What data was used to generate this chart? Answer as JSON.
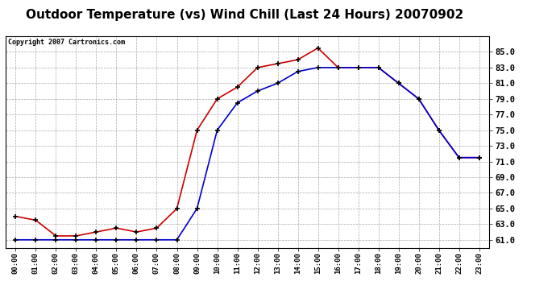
{
  "title": "Outdoor Temperature (vs) Wind Chill (Last 24 Hours) 20070902",
  "copyright_text": "Copyright 2007 Cartronics.com",
  "hours": [
    "00:00",
    "01:00",
    "02:00",
    "03:00",
    "04:00",
    "05:00",
    "06:00",
    "07:00",
    "08:00",
    "09:00",
    "10:00",
    "11:00",
    "12:00",
    "13:00",
    "14:00",
    "15:00",
    "16:00",
    "17:00",
    "18:00",
    "19:00",
    "20:00",
    "21:00",
    "22:00",
    "23:00"
  ],
  "temp": [
    64.0,
    63.5,
    61.5,
    61.5,
    62.0,
    62.5,
    62.0,
    62.5,
    65.0,
    75.0,
    79.0,
    80.5,
    83.0,
    83.5,
    84.0,
    85.5,
    83.0,
    83.0,
    83.0,
    81.0,
    79.0,
    75.0,
    71.5,
    71.5
  ],
  "wind_chill": [
    61.0,
    61.0,
    61.0,
    61.0,
    61.0,
    61.0,
    61.0,
    61.0,
    61.0,
    65.0,
    75.0,
    78.5,
    80.0,
    81.0,
    82.5,
    83.0,
    83.0,
    83.0,
    83.0,
    81.0,
    79.0,
    75.0,
    71.5,
    71.5
  ],
  "temp_color": "#cc0000",
  "wind_chill_color": "#0000cc",
  "ylim_min": 60.0,
  "ylim_max": 87.0,
  "ytick_min": 61.0,
  "ytick_max": 85.0,
  "ytick_step": 2.0,
  "background_color": "#ffffff",
  "plot_bg_color": "#ffffff",
  "grid_color": "#aaaaaa",
  "title_fontsize": 11,
  "marker": "+",
  "marker_color": "#000000",
  "marker_size": 5,
  "marker_linewidth": 1.2
}
